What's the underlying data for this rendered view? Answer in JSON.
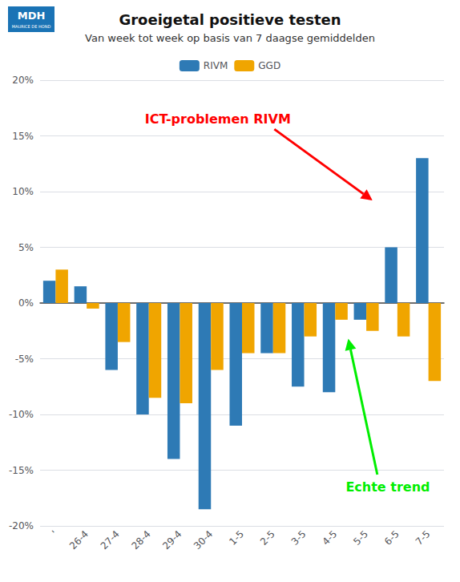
{
  "chart_data": {
    "type": "bar",
    "title": "Groeigetal positieve testen",
    "subtitle": "Van week tot week op basis van 7 daagse gemiddelden",
    "categories": [
      "'",
      "26-4",
      "27-4",
      "28-4",
      "29-4",
      "30-4",
      "1-5",
      "2-5",
      "3-5",
      "4-5",
      "5-5",
      "6-5",
      "7-5"
    ],
    "series": [
      {
        "name": "RIVM",
        "color": "#2e7ab5",
        "values": [
          2.0,
          1.5,
          -6.0,
          -10.0,
          -14.0,
          -18.5,
          -11.0,
          -4.5,
          -7.5,
          -8.0,
          -1.5,
          5.0,
          13.0
        ]
      },
      {
        "name": "GGD",
        "color": "#f0a500",
        "values": [
          3.0,
          -0.5,
          -3.5,
          -8.5,
          -9.0,
          -6.0,
          -4.5,
          -4.5,
          -3.0,
          -1.5,
          -2.5,
          -3.0,
          -7.0
        ]
      }
    ],
    "ylim": [
      -20,
      20
    ],
    "yticks": [
      {
        "value": -20,
        "label": "-20%"
      },
      {
        "value": -15,
        "label": "-15%"
      },
      {
        "value": -10,
        "label": "-10%"
      },
      {
        "value": -5,
        "label": "-5%"
      },
      {
        "value": 0,
        "label": "0%"
      },
      {
        "value": 5,
        "label": "5%"
      },
      {
        "value": 10,
        "label": "10%"
      },
      {
        "value": 15,
        "label": "15%"
      },
      {
        "value": 20,
        "label": "20%"
      }
    ],
    "grid": true,
    "legend": "top",
    "annotations": [
      {
        "text": "ICT-problemen RIVM",
        "color": "red"
      },
      {
        "text": "Echte trend",
        "color": "#00ee00"
      }
    ],
    "logo": {
      "text": "MDH",
      "subtext": "MAURICE DE HOND",
      "color": "#1a73b5"
    }
  }
}
